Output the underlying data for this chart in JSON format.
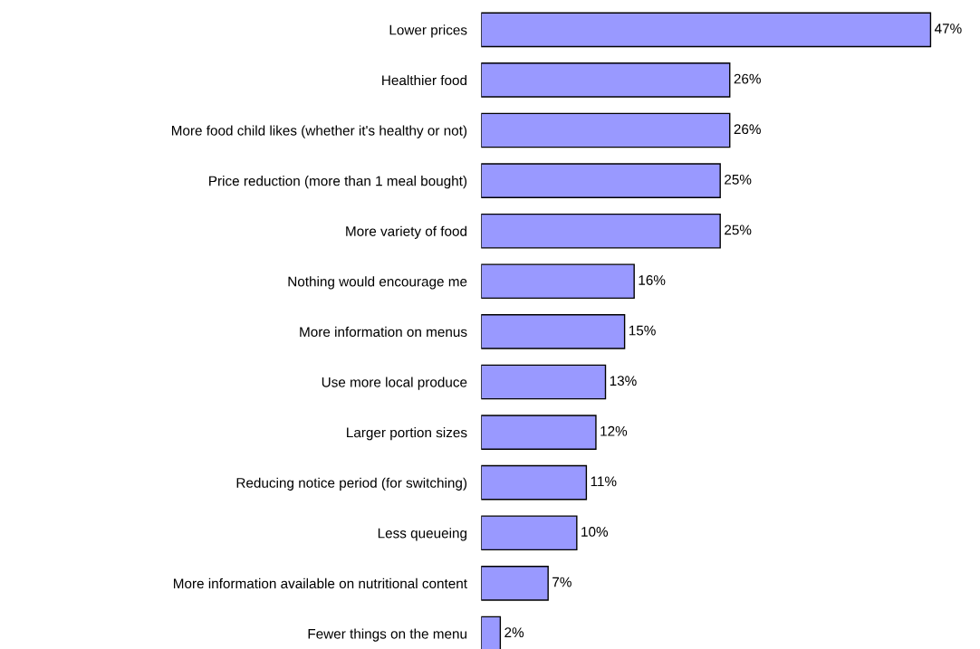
{
  "chart_data": {
    "type": "bar",
    "orientation": "horizontal",
    "categories": [
      "Lower prices",
      "Healthier food",
      "More food child likes (whether it's healthy or not)",
      "Price reduction (more than 1 meal bought)",
      "More variety of food",
      "Nothing would encourage me",
      "More information on menus",
      "Use more local produce",
      "Larger portion sizes",
      "Reducing notice period (for switching)",
      "Less queueing",
      "More information available on nutritional content",
      "Fewer things on the menu"
    ],
    "values": [
      47,
      26,
      26,
      25,
      25,
      16,
      15,
      13,
      12,
      11,
      10,
      7,
      2
    ],
    "value_labels": [
      "47%",
      "26%",
      "26%",
      "25%",
      "25%",
      "16%",
      "15%",
      "13%",
      "12%",
      "11%",
      "10%",
      "7%",
      "2%"
    ],
    "color": "#9999ff",
    "tick_labels": "y"
  }
}
